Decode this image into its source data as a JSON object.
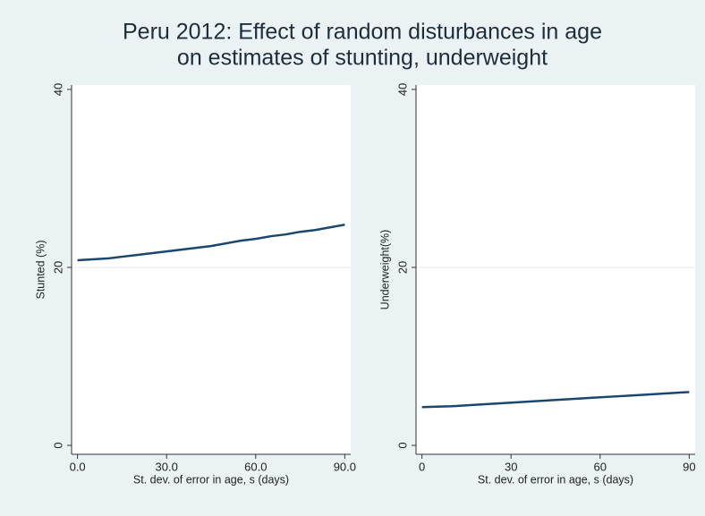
{
  "title": [
    "Peru 2012: Effect of random disturbances in age",
    "on estimates of stunting, underweight"
  ],
  "chart_data": [
    {
      "type": "line",
      "x_label": "St. dev. of error in age, s (days)",
      "y_label": "Stunted (%)",
      "x": [
        0,
        5,
        10,
        15,
        20,
        25,
        30,
        35,
        40,
        45,
        50,
        55,
        60,
        65,
        70,
        75,
        80,
        85,
        90
      ],
      "series": [
        {
          "color": "#1a476f",
          "values": [
            20.8,
            20.9,
            21.0,
            21.2,
            21.4,
            21.6,
            21.8,
            22.0,
            22.2,
            22.4,
            22.7,
            23.0,
            23.2,
            23.5,
            23.7,
            24.0,
            24.2,
            24.5,
            24.8
          ]
        }
      ],
      "xlim": [
        -2,
        92
      ],
      "xticks": [
        {
          "value": 0,
          "label": "0.0"
        },
        {
          "value": 30,
          "label": "30.0"
        },
        {
          "value": 60,
          "label": "60.0"
        },
        {
          "value": 90,
          "label": "90.0"
        }
      ],
      "ylim": [
        -1,
        40.5
      ],
      "yticks": [
        0,
        20,
        40
      ],
      "grid": true
    },
    {
      "type": "line",
      "x_label": "St. dev. of error in age, s (days)",
      "y_label": "Underweight(%)",
      "x": [
        0,
        5,
        10,
        15,
        20,
        25,
        30,
        35,
        40,
        45,
        50,
        55,
        60,
        65,
        70,
        75,
        80,
        85,
        90
      ],
      "series": [
        {
          "color": "#1a476f",
          "values": [
            4.3,
            4.35,
            4.4,
            4.5,
            4.6,
            4.7,
            4.8,
            4.9,
            5.0,
            5.1,
            5.2,
            5.3,
            5.4,
            5.5,
            5.6,
            5.7,
            5.8,
            5.9,
            6.0
          ]
        }
      ],
      "xlim": [
        -2,
        92
      ],
      "xticks": [
        0,
        30,
        60,
        90
      ],
      "ylim": [
        -1,
        40.5
      ],
      "yticks": [
        0,
        20,
        40
      ],
      "grid": true
    }
  ]
}
